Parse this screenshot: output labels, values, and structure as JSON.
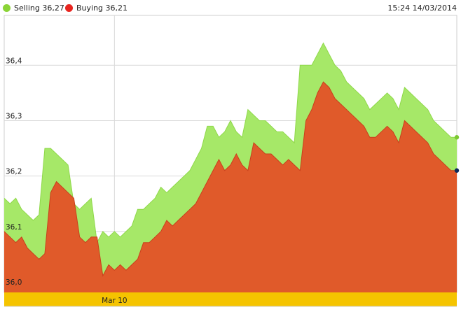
{
  "legend": {
    "selling_label": "Selling 36,27",
    "buying_label": "Buying 36,21",
    "selling_color": "#a6e868",
    "buying_color": "#e8251f"
  },
  "timestamp": "15:24 14/03/2014",
  "chart_data": {
    "type": "area",
    "xlabel": "",
    "ylabel": "",
    "ylim": [
      35.99,
      36.49
    ],
    "y_ticks": [
      "36,0",
      "36,1",
      "36,2",
      "36,3",
      "36,4"
    ],
    "y_tick_values": [
      36.0,
      36.1,
      36.2,
      36.3,
      36.4
    ],
    "x_ticks": [
      {
        "label": "Mar 10",
        "index": 19
      }
    ],
    "grid": true,
    "legend_position": "top-left",
    "series": [
      {
        "name": "Selling",
        "color": "#a6e868",
        "values": [
          36.16,
          36.15,
          36.16,
          36.14,
          36.13,
          36.12,
          36.13,
          36.25,
          36.25,
          36.24,
          36.23,
          36.22,
          36.15,
          36.14,
          36.15,
          36.16,
          36.08,
          36.1,
          36.09,
          36.1,
          36.09,
          36.1,
          36.11,
          36.14,
          36.14,
          36.15,
          36.16,
          36.18,
          36.17,
          36.18,
          36.19,
          36.2,
          36.21,
          36.23,
          36.25,
          36.29,
          36.29,
          36.27,
          36.28,
          36.3,
          36.28,
          36.27,
          36.32,
          36.31,
          36.3,
          36.3,
          36.29,
          36.28,
          36.28,
          36.27,
          36.26,
          36.4,
          36.4,
          36.4,
          36.42,
          36.44,
          36.42,
          36.4,
          36.39,
          36.37,
          36.36,
          36.35,
          36.34,
          36.32,
          36.33,
          36.34,
          36.35,
          36.34,
          36.32,
          36.36,
          36.35,
          36.34,
          36.33,
          36.32,
          36.3,
          36.29,
          36.28,
          36.27,
          36.27
        ]
      },
      {
        "name": "Buying",
        "color": "#e05a2a",
        "values": [
          36.1,
          36.09,
          36.08,
          36.09,
          36.07,
          36.06,
          36.05,
          36.06,
          36.17,
          36.19,
          36.18,
          36.17,
          36.16,
          36.09,
          36.08,
          36.09,
          36.09,
          36.02,
          36.04,
          36.03,
          36.04,
          36.03,
          36.04,
          36.05,
          36.08,
          36.08,
          36.09,
          36.1,
          36.12,
          36.11,
          36.12,
          36.13,
          36.14,
          36.15,
          36.17,
          36.19,
          36.21,
          36.23,
          36.21,
          36.22,
          36.24,
          36.22,
          36.21,
          36.26,
          36.25,
          36.24,
          36.24,
          36.23,
          36.22,
          36.23,
          36.22,
          36.21,
          36.3,
          36.32,
          36.35,
          36.37,
          36.36,
          36.34,
          36.33,
          36.32,
          36.31,
          36.3,
          36.29,
          36.27,
          36.27,
          36.28,
          36.29,
          36.28,
          36.26,
          36.3,
          36.29,
          36.28,
          36.27,
          36.26,
          36.24,
          36.23,
          36.22,
          36.21,
          36.21
        ]
      }
    ]
  }
}
